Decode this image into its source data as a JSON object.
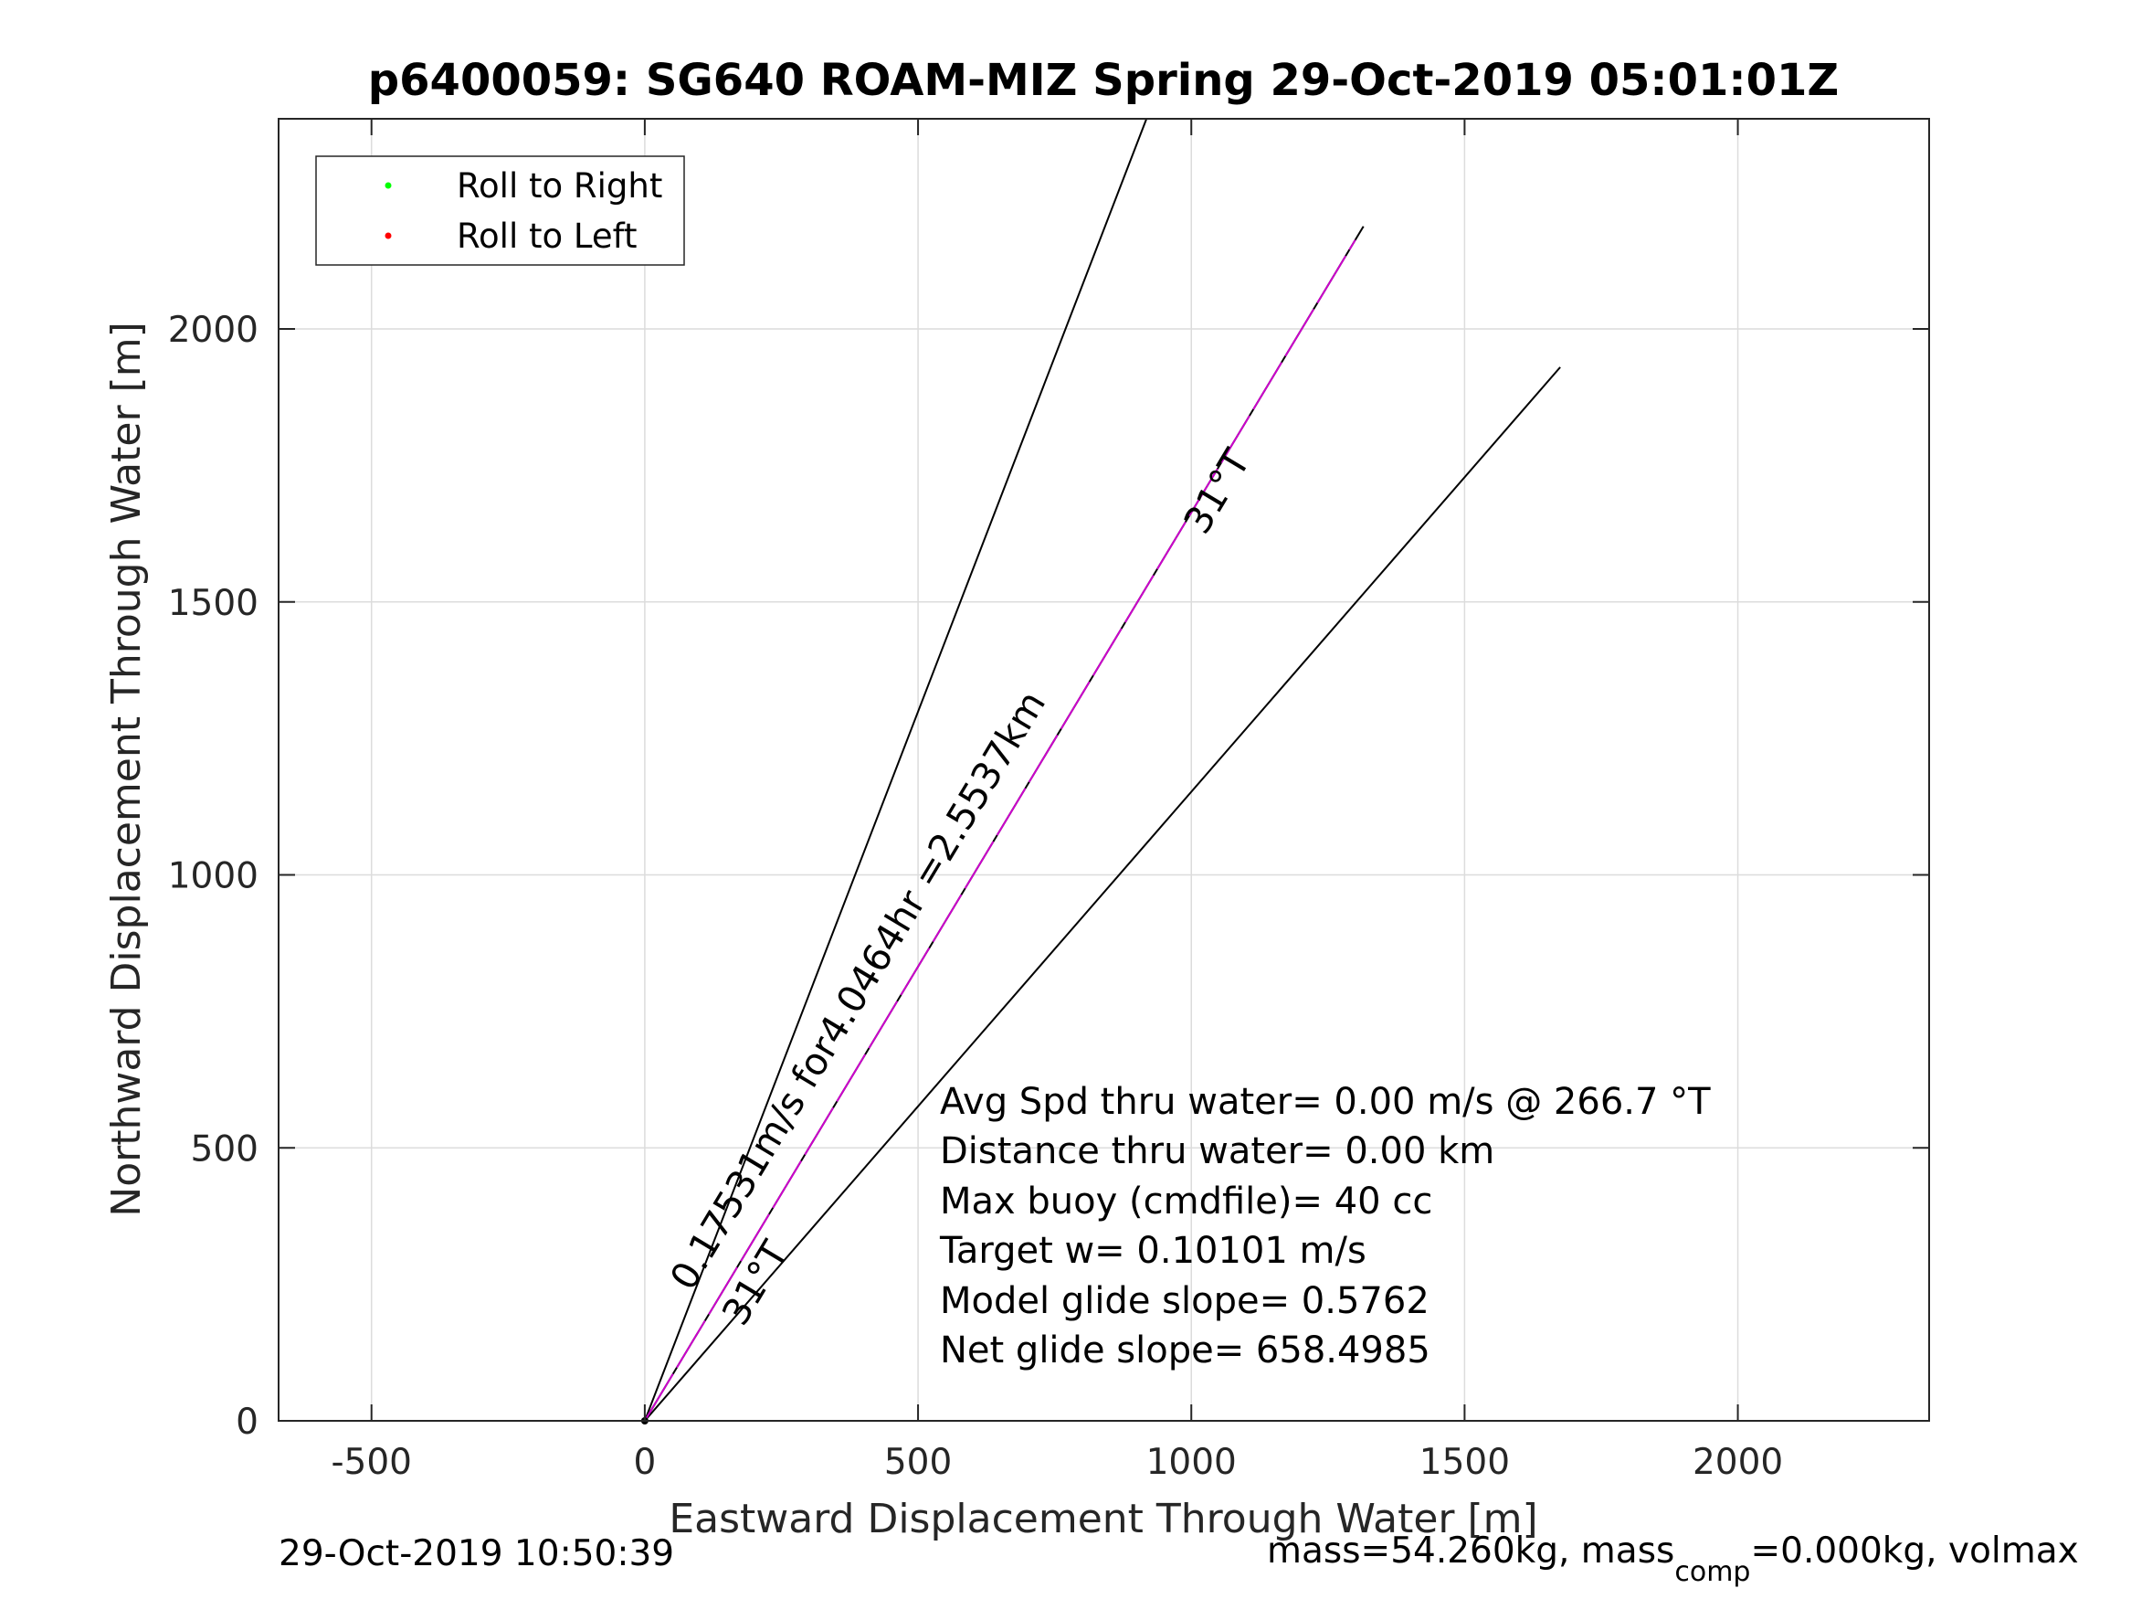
{
  "chart_data": {
    "type": "line",
    "title": "p6400059: SG640 ROAM-MIZ Spring 29-Oct-2019 05:01:01Z",
    "xlabel": "Eastward Displacement Through Water [m]",
    "ylabel": "Northward Displacement Through Water [m]",
    "xlim": [
      -670,
      2350
    ],
    "ylim": [
      0,
      2385
    ],
    "xticks": [
      -500,
      0,
      500,
      1000,
      1500,
      2000
    ],
    "yticks": [
      0,
      500,
      1000,
      1500,
      2000
    ],
    "grid": true,
    "legend": {
      "placement": "top-left",
      "entries": [
        {
          "label": "Roll to Right",
          "color": "#00ff00"
        },
        {
          "label": "Roll to Left",
          "color": "#ff0000"
        }
      ]
    },
    "series": [
      {
        "color": "#000000",
        "x": [
          0,
          918
        ],
        "y": [
          0,
          2385
        ]
      },
      {
        "color": "#000000",
        "x": [
          0,
          1315
        ],
        "y": [
          0,
          2188
        ]
      },
      {
        "color": "#000000",
        "x": [
          0,
          1675
        ],
        "y": [
          0,
          1930
        ]
      },
      {
        "color": "#cc00cc",
        "dashed": true,
        "x": [
          0,
          1300
        ],
        "y": [
          0,
          2163
        ]
      }
    ],
    "annotations": [
      {
        "text": "0.17531m/s for4.0464hr =2.5537km",
        "x": 85,
        "y": 235,
        "angle": -59
      },
      {
        "text": "31°T",
        "x": 180,
        "y": 170,
        "angle": -59
      },
      {
        "text": "31°T",
        "x": 1025,
        "y": 1620,
        "angle": -59
      }
    ],
    "info_lines": [
      "Avg Spd thru water=  0.00 m/s @ 266.7 °T",
      "Distance thru water=  0.00 km",
      "Max buoy (cmdfile)= 40 cc",
      "Target w= 0.10101 m/s",
      "Model glide slope= 0.5762",
      "Net glide slope= 658.4985"
    ]
  },
  "footer": {
    "timestamp": "29-Oct-2019 10:50:39",
    "mass_text_a": "mass=54.260kg, mass",
    "mass_sub": "comp",
    "mass_text_b": "=0.000kg, volmax"
  }
}
